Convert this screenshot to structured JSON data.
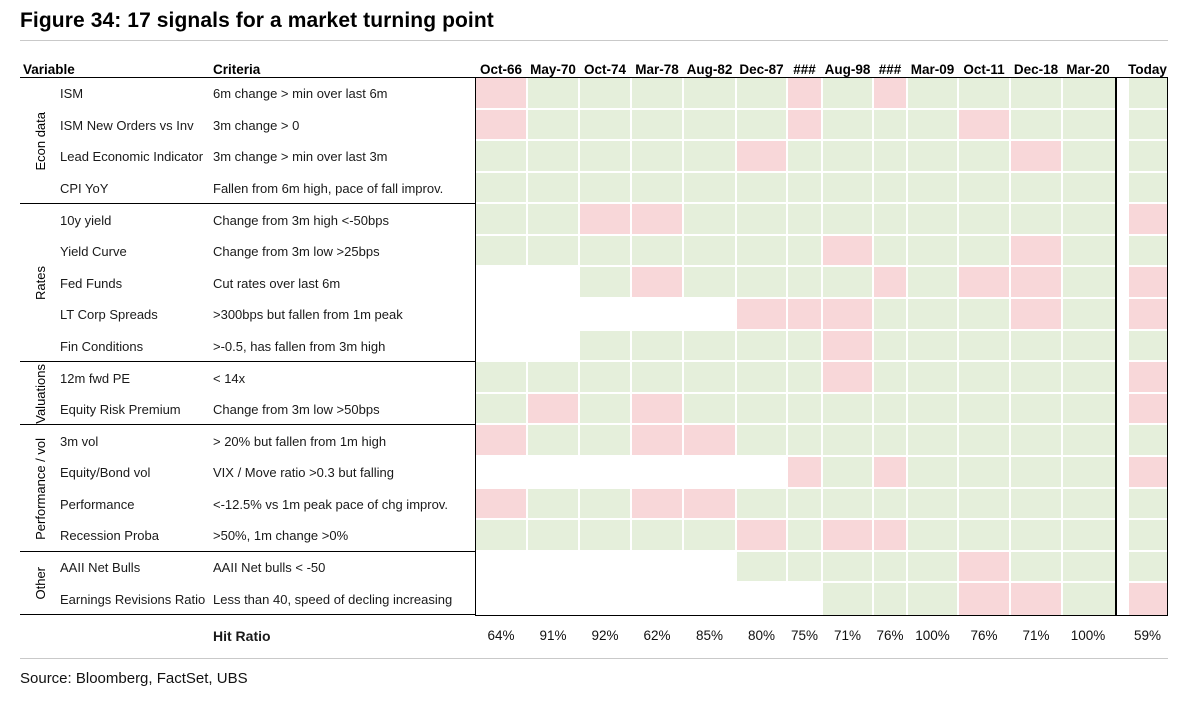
{
  "title": "Figure 34: 17 signals for a market turning point",
  "source": "Source: Bloomberg, FactSet, UBS",
  "table": {
    "variable_header": "Variable",
    "criteria_header": "Criteria",
    "hit_ratio_label": "Hit Ratio",
    "columns": [
      "Oct-66",
      "May-70",
      "Oct-74",
      "Mar-78",
      "Aug-82",
      "Dec-87",
      "###",
      "Aug-98",
      "###",
      "Mar-09",
      "Oct-11",
      "Dec-18",
      "Mar-20",
      "Today"
    ],
    "hit_ratios": [
      "64%",
      "91%",
      "92%",
      "62%",
      "85%",
      "80%",
      "75%",
      "71%",
      "76%",
      "100%",
      "76%",
      "71%",
      "100%",
      "59%"
    ],
    "cell_colors": {
      "H": "#e5efdb",
      "M": "#f8d7d9",
      "W": "#ffffff"
    },
    "groups": [
      {
        "label": "Econ data",
        "rows": [
          {
            "v": "ISM",
            "c": "6m change > min over last 6m",
            "cells": [
              "M",
              "H",
              "H",
              "H",
              "H",
              "H",
              "M",
              "H",
              "M",
              "H",
              "H",
              "H",
              "H",
              "H"
            ]
          },
          {
            "v": "ISM New Orders vs Inv",
            "c": "3m change > 0",
            "cells": [
              "M",
              "H",
              "H",
              "H",
              "H",
              "H",
              "M",
              "H",
              "H",
              "H",
              "M",
              "H",
              "H",
              "H"
            ]
          },
          {
            "v": "Lead Economic Indicator",
            "c": "3m change > min over last 3m",
            "cells": [
              "H",
              "H",
              "H",
              "H",
              "H",
              "M",
              "H",
              "H",
              "H",
              "H",
              "H",
              "M",
              "H",
              "H"
            ]
          },
          {
            "v": "CPI YoY",
            "c": "Fallen from 6m high, pace of fall improv.",
            "cells": [
              "H",
              "H",
              "H",
              "H",
              "H",
              "H",
              "H",
              "H",
              "H",
              "H",
              "H",
              "H",
              "H",
              "H"
            ]
          }
        ]
      },
      {
        "label": "Rates",
        "rows": [
          {
            "v": "10y yield",
            "c": "Change from 3m high <-50bps",
            "cells": [
              "H",
              "H",
              "M",
              "M",
              "H",
              "H",
              "H",
              "H",
              "H",
              "H",
              "H",
              "H",
              "H",
              "M"
            ]
          },
          {
            "v": "Yield Curve",
            "c": "Change from 3m low >25bps",
            "cells": [
              "H",
              "H",
              "H",
              "H",
              "H",
              "H",
              "H",
              "M",
              "H",
              "H",
              "H",
              "M",
              "H",
              "H"
            ]
          },
          {
            "v": "Fed Funds",
            "c": "Cut rates over last 6m",
            "cells": [
              "W",
              "W",
              "H",
              "M",
              "H",
              "H",
              "H",
              "H",
              "M",
              "H",
              "M",
              "M",
              "H",
              "M"
            ]
          },
          {
            "v": "LT Corp Spreads",
            "c": ">300bps but fallen from 1m peak",
            "cells": [
              "W",
              "W",
              "W",
              "W",
              "W",
              "M",
              "M",
              "M",
              "H",
              "H",
              "H",
              "M",
              "H",
              "M"
            ]
          },
          {
            "v": "Fin Conditions",
            "c": ">-0.5, has fallen from 3m high",
            "cells": [
              "W",
              "W",
              "H",
              "H",
              "H",
              "H",
              "H",
              "M",
              "H",
              "H",
              "H",
              "H",
              "H",
              "H"
            ]
          }
        ]
      },
      {
        "label": "Valuations",
        "rows": [
          {
            "v": "12m fwd PE",
            "c": "< 14x",
            "cells": [
              "H",
              "H",
              "H",
              "H",
              "H",
              "H",
              "H",
              "M",
              "H",
              "H",
              "H",
              "H",
              "H",
              "M"
            ]
          },
          {
            "v": "Equity Risk Premium",
            "c": "Change from 3m low >50bps",
            "cells": [
              "H",
              "M",
              "H",
              "M",
              "H",
              "H",
              "H",
              "H",
              "H",
              "H",
              "H",
              "H",
              "H",
              "M"
            ]
          }
        ]
      },
      {
        "label": "Performance / vol",
        "rows": [
          {
            "v": "3m vol",
            "c": "> 20% but fallen from 1m high",
            "cells": [
              "M",
              "H",
              "H",
              "M",
              "M",
              "H",
              "H",
              "H",
              "H",
              "H",
              "H",
              "H",
              "H",
              "H"
            ]
          },
          {
            "v": "Equity/Bond vol",
            "c": "VIX / Move ratio >0.3 but falling",
            "cells": [
              "W",
              "W",
              "W",
              "W",
              "W",
              "W",
              "M",
              "H",
              "M",
              "H",
              "H",
              "H",
              "H",
              "M"
            ]
          },
          {
            "v": "Performance",
            "c": "<-12.5% vs 1m peak pace of chg improv.",
            "cells": [
              "M",
              "H",
              "H",
              "M",
              "M",
              "H",
              "H",
              "H",
              "H",
              "H",
              "H",
              "H",
              "H",
              "H"
            ]
          },
          {
            "v": "Recession Proba",
            "c": ">50%, 1m change >0%",
            "cells": [
              "H",
              "H",
              "H",
              "H",
              "H",
              "M",
              "H",
              "M",
              "M",
              "H",
              "H",
              "H",
              "H",
              "H"
            ]
          }
        ]
      },
      {
        "label": "Other",
        "rows": [
          {
            "v": "AAII Net Bulls",
            "c": "AAII Net bulls < -50",
            "cells": [
              "W",
              "W",
              "W",
              "W",
              "W",
              "H",
              "H",
              "H",
              "H",
              "H",
              "M",
              "H",
              "H",
              "H"
            ]
          },
          {
            "v": "Earnings Revisions Ratio",
            "c": "Less than 40, speed of decling increasing",
            "cells": [
              "W",
              "W",
              "W",
              "W",
              "W",
              "W",
              "W",
              "H",
              "H",
              "H",
              "M",
              "M",
              "H",
              "M"
            ]
          }
        ]
      }
    ]
  },
  "chart_data": {
    "type": "heatmap",
    "title": "Figure 34: 17 signals for a market turning point",
    "columns": [
      "Oct-66",
      "May-70",
      "Oct-74",
      "Mar-78",
      "Aug-82",
      "Dec-87",
      "###",
      "Aug-98",
      "###",
      "Mar-09",
      "Oct-11",
      "Dec-18",
      "Mar-20",
      "Today"
    ],
    "cell_states": {
      "H": "criteria met (green)",
      "M": "criteria not met (pink)",
      "W": "no data (blank)"
    },
    "rows": [
      {
        "group": "Econ data",
        "variable": "ISM",
        "criteria": "6m change > min over last 6m",
        "values": [
          "M",
          "H",
          "H",
          "H",
          "H",
          "H",
          "M",
          "H",
          "M",
          "H",
          "H",
          "H",
          "H",
          "H"
        ]
      },
      {
        "group": "Econ data",
        "variable": "ISM New Orders vs Inv",
        "criteria": "3m change > 0",
        "values": [
          "M",
          "H",
          "H",
          "H",
          "H",
          "H",
          "M",
          "H",
          "H",
          "H",
          "M",
          "H",
          "H",
          "H"
        ]
      },
      {
        "group": "Econ data",
        "variable": "Lead Economic Indicator",
        "criteria": "3m change > min over last 3m",
        "values": [
          "H",
          "H",
          "H",
          "H",
          "H",
          "M",
          "H",
          "H",
          "H",
          "H",
          "H",
          "M",
          "H",
          "H"
        ]
      },
      {
        "group": "Econ data",
        "variable": "CPI YoY",
        "criteria": "Fallen from 6m high, pace of fall improv.",
        "values": [
          "H",
          "H",
          "H",
          "H",
          "H",
          "H",
          "H",
          "H",
          "H",
          "H",
          "H",
          "H",
          "H",
          "H"
        ]
      },
      {
        "group": "Rates",
        "variable": "10y yield",
        "criteria": "Change from 3m high <-50bps",
        "values": [
          "H",
          "H",
          "M",
          "M",
          "H",
          "H",
          "H",
          "H",
          "H",
          "H",
          "H",
          "H",
          "H",
          "M"
        ]
      },
      {
        "group": "Rates",
        "variable": "Yield Curve",
        "criteria": "Change from 3m low >25bps",
        "values": [
          "H",
          "H",
          "H",
          "H",
          "H",
          "H",
          "H",
          "M",
          "H",
          "H",
          "H",
          "M",
          "H",
          "H"
        ]
      },
      {
        "group": "Rates",
        "variable": "Fed Funds",
        "criteria": "Cut rates over last 6m",
        "values": [
          "W",
          "W",
          "H",
          "M",
          "H",
          "H",
          "H",
          "H",
          "M",
          "H",
          "M",
          "M",
          "H",
          "M"
        ]
      },
      {
        "group": "Rates",
        "variable": "LT Corp Spreads",
        "criteria": ">300bps but fallen from 1m peak",
        "values": [
          "W",
          "W",
          "W",
          "W",
          "W",
          "M",
          "M",
          "M",
          "H",
          "H",
          "H",
          "M",
          "H",
          "M"
        ]
      },
      {
        "group": "Rates",
        "variable": "Fin Conditions",
        "criteria": ">-0.5, has fallen from 3m high",
        "values": [
          "W",
          "W",
          "H",
          "H",
          "H",
          "H",
          "H",
          "M",
          "H",
          "H",
          "H",
          "H",
          "H",
          "H"
        ]
      },
      {
        "group": "Valuations",
        "variable": "12m fwd PE",
        "criteria": "< 14x",
        "values": [
          "H",
          "H",
          "H",
          "H",
          "H",
          "H",
          "H",
          "M",
          "H",
          "H",
          "H",
          "H",
          "H",
          "M"
        ]
      },
      {
        "group": "Valuations",
        "variable": "Equity Risk Premium",
        "criteria": "Change from 3m low >50bps",
        "values": [
          "H",
          "M",
          "H",
          "M",
          "H",
          "H",
          "H",
          "H",
          "H",
          "H",
          "H",
          "H",
          "H",
          "M"
        ]
      },
      {
        "group": "Performance / vol",
        "variable": "3m vol",
        "criteria": "> 20% but fallen from 1m high",
        "values": [
          "M",
          "H",
          "H",
          "M",
          "M",
          "H",
          "H",
          "H",
          "H",
          "H",
          "H",
          "H",
          "H",
          "H"
        ]
      },
      {
        "group": "Performance / vol",
        "variable": "Equity/Bond vol",
        "criteria": "VIX / Move ratio >0.3 but falling",
        "values": [
          "W",
          "W",
          "W",
          "W",
          "W",
          "W",
          "M",
          "H",
          "M",
          "H",
          "H",
          "H",
          "H",
          "M"
        ]
      },
      {
        "group": "Performance / vol",
        "variable": "Performance",
        "criteria": "<-12.5% vs 1m peak pace of chg improv.",
        "values": [
          "M",
          "H",
          "H",
          "M",
          "M",
          "H",
          "H",
          "H",
          "H",
          "H",
          "H",
          "H",
          "H",
          "H"
        ]
      },
      {
        "group": "Performance / vol",
        "variable": "Recession Proba",
        "criteria": ">50%, 1m change >0%",
        "values": [
          "H",
          "H",
          "H",
          "H",
          "H",
          "M",
          "H",
          "M",
          "M",
          "H",
          "H",
          "H",
          "H",
          "H"
        ]
      },
      {
        "group": "Other",
        "variable": "AAII Net Bulls",
        "criteria": "AAII Net bulls < -50",
        "values": [
          "W",
          "W",
          "W",
          "W",
          "W",
          "H",
          "H",
          "H",
          "H",
          "H",
          "M",
          "H",
          "H",
          "H"
        ]
      },
      {
        "group": "Other",
        "variable": "Earnings Revisions Ratio",
        "criteria": "Less than 40, speed of decling increasing",
        "values": [
          "W",
          "W",
          "W",
          "W",
          "W",
          "W",
          "W",
          "H",
          "H",
          "H",
          "M",
          "M",
          "H",
          "M"
        ]
      }
    ],
    "hit_ratio": {
      "label": "Hit Ratio",
      "values": [
        "64%",
        "91%",
        "92%",
        "62%",
        "85%",
        "80%",
        "75%",
        "71%",
        "76%",
        "100%",
        "76%",
        "71%",
        "100%",
        "59%"
      ]
    },
    "colors": {
      "hit": "#e5efdb",
      "miss": "#f8d7d9",
      "none": "#ffffff"
    },
    "source": "Source: Bloomberg, FactSet, UBS"
  }
}
